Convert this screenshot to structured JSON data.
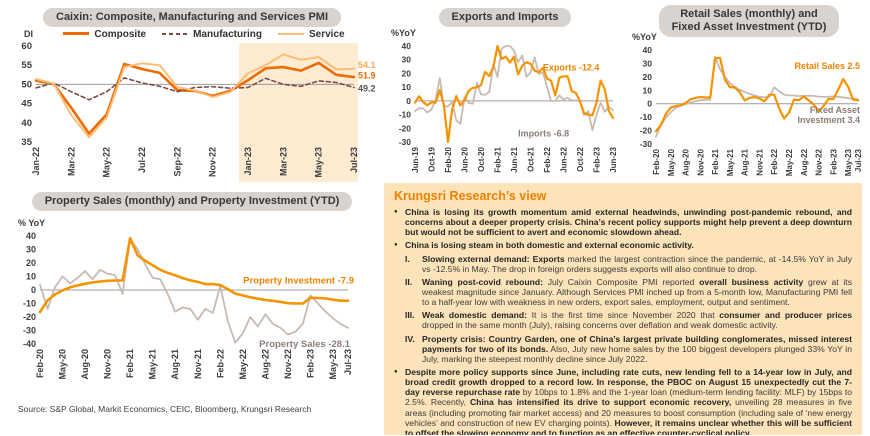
{
  "source_note": "Source: S&P Global, Markit Economics, CEIC, Bloomberg, Krungsri Research",
  "colors": {
    "orange": "#F59300",
    "composite_orange": "#EF6A00",
    "light_orange": "#FBBE77",
    "brown_dashed": "#7D4B45",
    "gray_line": "#C7BAB3",
    "gray_label": "#8A7D75",
    "orange_label": "#EF8200",
    "panel_bg": "#FCE3B9",
    "pill_bg": "#D9D3D0",
    "heading_orange": "#EF8200",
    "highlight": "#FDEBD2"
  },
  "chart_data": [
    {
      "id": "pmi",
      "type": "line",
      "title": "Caixin: Composite, Manufacturing and Services PMI",
      "unit": "DI",
      "categories": [
        "Jan-22",
        "Feb-22",
        "Mar-22",
        "Apr-22",
        "May-22",
        "Jun-22",
        "Jul-22",
        "Aug-22",
        "Sep-22",
        "Oct-22",
        "Nov-22",
        "Dec-22",
        "Jan-23",
        "Feb-23",
        "Mar-23",
        "Apr-23",
        "May-23",
        "Jun-23",
        "Jul-23"
      ],
      "xticks": [
        "Jan-22",
        "Mar-22",
        "May-22",
        "Jul-22",
        "Sep-22",
        "Nov-22",
        "Jan-23",
        "Mar-23",
        "May-23",
        "Jul-23"
      ],
      "ylim": [
        35,
        60
      ],
      "yticks": [
        60,
        55,
        50,
        45,
        40,
        35
      ],
      "ref_line": 50,
      "legend_position": "top",
      "highlight": {
        "from": "Jan-23",
        "to": "end",
        "color": "#FDEBD2"
      },
      "series": [
        {
          "name": "Composite",
          "color": "#EF6A00",
          "width": 2.6,
          "dash": null,
          "values": [
            51.0,
            50.1,
            43.9,
            37.2,
            42.2,
            55.3,
            54.0,
            53.0,
            48.5,
            48.3,
            47.0,
            48.3,
            51.1,
            54.2,
            54.5,
            53.6,
            55.6,
            52.5,
            51.9
          ]
        },
        {
          "name": "Manufacturing",
          "color": "#7D4B45",
          "width": 1.6,
          "dash": "4 3",
          "values": [
            49.1,
            50.4,
            48.1,
            46.0,
            48.1,
            51.7,
            50.4,
            49.5,
            48.1,
            49.2,
            49.4,
            49.0,
            49.2,
            51.6,
            50.0,
            49.5,
            50.9,
            50.5,
            49.2
          ]
        },
        {
          "name": "Service",
          "color": "#FBBE77",
          "width": 2.0,
          "dash": null,
          "values": [
            51.4,
            50.2,
            42.0,
            36.2,
            41.4,
            54.5,
            55.5,
            55.0,
            49.3,
            48.4,
            46.7,
            48.0,
            52.9,
            55.0,
            57.8,
            56.4,
            57.1,
            53.9,
            54.1
          ]
        }
      ],
      "annotations": [
        {
          "text": "54.1",
          "color": "#F6A94F",
          "xi": 18,
          "yv": 54.3,
          "dx": 4,
          "anchor": "start"
        },
        {
          "text": "51.9",
          "color": "#EF6A00",
          "xi": 18,
          "yv": 51.6,
          "dx": 4,
          "anchor": "start"
        },
        {
          "text": "49.2",
          "color": "#57504B",
          "xi": 18,
          "yv": 48.1,
          "dx": 4,
          "anchor": "start"
        }
      ]
    },
    {
      "id": "trade",
      "type": "line",
      "title": "Exports and Imports",
      "unit": "%YoY",
      "categories": [
        "Jun-19",
        "Jul-19",
        "Aug-19",
        "Sep-19",
        "Oct-19",
        "Nov-19",
        "Dec-19",
        "Jan-20",
        "Feb-20",
        "Mar-20",
        "Apr-20",
        "May-20",
        "Jun-20",
        "Jul-20",
        "Aug-20",
        "Sep-20",
        "Oct-20",
        "Nov-20",
        "Dec-20",
        "Jan-21",
        "Feb-21",
        "Mar-21",
        "Apr-21",
        "May-21",
        "Jun-21",
        "Jul-21",
        "Aug-21",
        "Sep-21",
        "Oct-21",
        "Nov-21",
        "Dec-21",
        "Jan-22",
        "Feb-22",
        "Mar-22",
        "Apr-22",
        "May-22",
        "Jun-22",
        "Jul-22",
        "Aug-22",
        "Sep-22",
        "Oct-22",
        "Nov-22",
        "Dec-22",
        "Jan-23",
        "Feb-23",
        "Mar-23",
        "Apr-23",
        "May-23",
        "Jun-23"
      ],
      "xticks": [
        "Jun-19",
        "Oct-19",
        "Feb-20",
        "Jun-20",
        "Oct-20",
        "Feb-21",
        "Jun-21",
        "Oct-21",
        "Feb-22",
        "Jun-22",
        "Oct-22",
        "Feb-23",
        "Jun-23"
      ],
      "ylim": [
        -30,
        40
      ],
      "yticks": [
        40,
        30,
        20,
        10,
        0,
        -10,
        -20,
        -30
      ],
      "ref_line": 0,
      "series": [
        {
          "name": "Imports",
          "color": "#C7BAB3",
          "width": 1.8,
          "dash": null,
          "values": [
            -7.4,
            -5.3,
            -5.6,
            -8.5,
            -6.2,
            0.8,
            16.5,
            -4.0,
            -4.0,
            -1.0,
            -14.2,
            -16.7,
            2.7,
            -1.4,
            -2.1,
            13.2,
            4.7,
            4.5,
            6.5,
            26.6,
            17.3,
            38.1,
            43.1,
            51.1,
            36.7,
            28.1,
            33.1,
            17.6,
            20.6,
            31.7,
            19.5,
            20.9,
            10.4,
            -0.1,
            0.0,
            4.1,
            1.0,
            2.3,
            0.3,
            0.3,
            -0.7,
            -10.6,
            -7.5,
            -21.4,
            -10.2,
            -1.4,
            -7.9,
            -4.5,
            -6.8
          ]
        },
        {
          "name": "Exports",
          "color": "#F59300",
          "width": 2.2,
          "dash": null,
          "values": [
            -1.3,
            3.3,
            -1.0,
            -3.2,
            -0.9,
            -1.3,
            7.9,
            -3.0,
            -32.0,
            -6.6,
            3.5,
            -3.3,
            0.5,
            7.2,
            9.5,
            9.9,
            11.4,
            21.1,
            18.1,
            24.8,
            60.0,
            30.6,
            32.3,
            27.9,
            32.2,
            19.3,
            25.6,
            28.1,
            27.1,
            22.0,
            20.9,
            24.1,
            16.3,
            14.7,
            3.9,
            16.9,
            17.9,
            18.0,
            7.1,
            5.7,
            -0.3,
            -9.0,
            -10.1,
            -10.5,
            -1.3,
            14.8,
            8.5,
            -7.5,
            -12.4
          ]
        }
      ],
      "annotations": [
        {
          "text": "Exports -12.4",
          "color": "#EF8200",
          "xi": 31,
          "yv": 22,
          "anchor": "start"
        },
        {
          "text": "Imports -6.8",
          "color": "#8A7D75",
          "xi": 25,
          "yv": -26,
          "anchor": "start"
        }
      ]
    },
    {
      "id": "retail",
      "type": "line",
      "title": "Retail Sales (monthly) and\nFixed Asset Investment (YTD)",
      "unit": "%YoY",
      "categories": [
        "Feb-20",
        "Mar-20",
        "Apr-20",
        "May-20",
        "Jun-20",
        "Jul-20",
        "Aug-20",
        "Sep-20",
        "Oct-20",
        "Nov-20",
        "Dec-20",
        "Jan-21",
        "Feb-21",
        "Mar-21",
        "Apr-21",
        "May-21",
        "Jun-21",
        "Jul-21",
        "Aug-21",
        "Sep-21",
        "Oct-21",
        "Nov-21",
        "Dec-21",
        "Jan-22",
        "Feb-22",
        "Mar-22",
        "Apr-22",
        "May-22",
        "Jun-22",
        "Jul-22",
        "Aug-22",
        "Sep-22",
        "Oct-22",
        "Nov-22",
        "Dec-22",
        "Jan-23",
        "Feb-23",
        "Mar-23",
        "Apr-23",
        "May-23",
        "Jun-23",
        "Jul-23"
      ],
      "xticks": [
        "Feb-20",
        "May-20",
        "Aug-20",
        "Nov-20",
        "Feb-21",
        "May-21",
        "Aug-21",
        "Nov-21",
        "Feb-22",
        "May-22",
        "Aug-22",
        "Nov-22",
        "Feb-23",
        "May-23",
        "Jul-23"
      ],
      "ylim": [
        -30,
        40
      ],
      "yticks": [
        40,
        30,
        20,
        10,
        0,
        -10,
        -20,
        -30
      ],
      "ref_line": 0,
      "series": [
        {
          "name": "Fixed Asset Investment",
          "color": "#C7BAB3",
          "width": 1.8,
          "dash": null,
          "values": [
            -24.5,
            -16.1,
            -10.3,
            -6.3,
            -3.1,
            -1.6,
            -0.3,
            0.8,
            1.8,
            2.6,
            2.9,
            2.9,
            35.0,
            25.6,
            19.9,
            15.4,
            12.6,
            10.3,
            8.9,
            7.3,
            6.1,
            5.2,
            4.9,
            4.9,
            12.2,
            9.3,
            6.8,
            6.2,
            6.1,
            5.7,
            5.8,
            5.9,
            5.8,
            5.3,
            5.1,
            5.1,
            5.5,
            5.1,
            4.7,
            4.0,
            3.8,
            3.4
          ]
        },
        {
          "name": "Retail Sales",
          "color": "#F59300",
          "width": 2.2,
          "dash": null,
          "values": [
            -20.5,
            -15.8,
            -7.5,
            -2.8,
            -1.8,
            -1.1,
            0.5,
            3.3,
            4.3,
            5.0,
            4.6,
            4.6,
            33.8,
            34.2,
            17.7,
            12.4,
            12.1,
            8.5,
            2.5,
            4.4,
            4.9,
            3.9,
            1.7,
            6.7,
            6.7,
            -3.5,
            -11.1,
            -6.7,
            3.1,
            2.7,
            5.4,
            2.5,
            -0.5,
            -5.9,
            -1.8,
            3.5,
            3.5,
            10.6,
            18.4,
            12.7,
            3.1,
            2.5
          ]
        }
      ],
      "annotations": [
        {
          "text": "Retail Sales 2.5",
          "color": "#EF8200",
          "xi": 41,
          "yv": 26,
          "dx": 2,
          "anchor": "end"
        },
        {
          "lines": [
            "Fixed Asset",
            "Investment 3.4"
          ],
          "color": "#8A7D75",
          "xi": 41,
          "yv": -7,
          "dx": 2,
          "anchor": "end"
        }
      ]
    },
    {
      "id": "property",
      "type": "line",
      "title": "Property Sales (monthly) and Property Investment (YTD)",
      "unit": "% YoY",
      "categories": [
        "Feb-20",
        "Mar-20",
        "Apr-20",
        "May-20",
        "Jun-20",
        "Jul-20",
        "Aug-20",
        "Sep-20",
        "Oct-20",
        "Nov-20",
        "Dec-20",
        "Jan-21",
        "Feb-21",
        "Mar-21",
        "Apr-21",
        "May-21",
        "Jun-21",
        "Jul-21",
        "Aug-21",
        "Sep-21",
        "Oct-21",
        "Nov-21",
        "Dec-21",
        "Jan-22",
        "Feb-22",
        "Mar-22",
        "Apr-22",
        "May-22",
        "Jun-22",
        "Jul-22",
        "Aug-22",
        "Sep-22",
        "Oct-22",
        "Nov-22",
        "Dec-22",
        "Jan-23",
        "Feb-23",
        "Mar-23",
        "Apr-23",
        "May-23",
        "Jun-23",
        "Jul-23"
      ],
      "xticks": [
        "Feb-20",
        "May-20",
        "Aug-20",
        "Nov-20",
        "Feb-21",
        "May-21",
        "Aug-21",
        "Nov-21",
        "Feb-22",
        "May-22",
        "Aug-22",
        "Nov-22",
        "Feb-23",
        "May-23",
        "Jul-23"
      ],
      "ylim": [
        -40,
        40
      ],
      "yticks": [
        40,
        30,
        20,
        10,
        0,
        -10,
        -20,
        -30,
        -40
      ],
      "ref_line": 0,
      "series": [
        {
          "name": "Property Sales",
          "color": "#C7BAB3",
          "width": 1.8,
          "dash": null,
          "values": [
            4,
            -14,
            2,
            10,
            5,
            9,
            14,
            8,
            15,
            12,
            11,
            -3,
            38,
            30,
            19,
            9,
            8,
            -3,
            -16,
            -13,
            -14,
            -22,
            -14,
            -17,
            3,
            -23,
            -39,
            -32,
            -20,
            -27,
            -18,
            -25,
            -28,
            -33,
            -31,
            -25,
            -4,
            -10,
            -16,
            -21,
            -25,
            -28.1
          ]
        },
        {
          "name": "Property Investment",
          "color": "#F59300",
          "width": 2.6,
          "dash": null,
          "values": [
            -16.3,
            -7.7,
            -3.3,
            -0.3,
            1.9,
            3.4,
            4.6,
            5.6,
            6.3,
            6.8,
            7.0,
            7.0,
            38.3,
            25.6,
            21.6,
            18.3,
            15.0,
            12.7,
            10.9,
            8.8,
            7.2,
            6.0,
            4.4,
            4.4,
            3.7,
            0.7,
            -2.7,
            -4.0,
            -5.4,
            -6.4,
            -7.4,
            -8.0,
            -8.8,
            -9.8,
            -10.0,
            -10.0,
            -5.7,
            -5.9,
            -6.2,
            -7.2,
            -7.9,
            -7.9
          ]
        }
      ],
      "annotations": [
        {
          "text": "Property Investment -7.9",
          "color": "#EF8200",
          "xi": 41,
          "yv": 5,
          "dx": 6,
          "anchor": "end"
        },
        {
          "text": "Property Sales -28.1",
          "color": "#8A7D75",
          "xi": 41,
          "yv": -40,
          "dx": 2,
          "dy": 3,
          "anchor": "end"
        }
      ]
    }
  ],
  "krungsri": {
    "heading": "Krungsri Research’s view",
    "items": [
      {
        "marker": "●",
        "style": "bullet",
        "segments": [
          {
            "b": true,
            "t": "China is losing its growth momentum amid external headwinds, unwinding post-pandemic rebound, and concerns about a deeper property crisis. China’s recent policy supports might help prevent a deep downturn but would not be sufficient to avert and economic slowdown ahead."
          }
        ]
      },
      {
        "marker": "●",
        "style": "bullet",
        "segments": [
          {
            "b": true,
            "t": "China is losing steam in both domestic and external economic activity."
          }
        ]
      },
      {
        "marker": "I.",
        "style": "roman",
        "segments": [
          {
            "b": true,
            "t": "Slowing external demand: Exports"
          },
          {
            "b": false,
            "t": " marked the largest contraction since the pandemic, at -14.5% YoY in July vs -12.5% in May. The drop in foreign orders suggests exports will also continue to drop."
          }
        ]
      },
      {
        "marker": "II.",
        "style": "roman",
        "segments": [
          {
            "b": true,
            "t": "Waning post-covid rebound:"
          },
          {
            "b": false,
            "t": " July Caixin Composite PMI reported "
          },
          {
            "b": true,
            "t": "overall business activity"
          },
          {
            "b": false,
            "t": " grew at its weakest magnitude since January. Although Services PMI inched up from a 5-month low, Manufacturing PMI fell to a half-year low with weakness in new orders, export sales, employment, output and sentiment."
          }
        ]
      },
      {
        "marker": "III.",
        "style": "roman",
        "segments": [
          {
            "b": true,
            "t": "Weak domestic demand:"
          },
          {
            "b": false,
            "t": " It is the first time since November 2020 that "
          },
          {
            "b": true,
            "t": "consumer and producer prices"
          },
          {
            "b": false,
            "t": " dropped in the same month (July), raising concerns over deflation and weak domestic activity."
          }
        ]
      },
      {
        "marker": "IV.",
        "style": "roman",
        "segments": [
          {
            "b": true,
            "t": "Property crisis: Country Garden, one of China’s largest private building conglomerates, missed interest payments for two of its bonds."
          },
          {
            "b": false,
            "t": " Also, July new home sales by the 100 biggest developers plunged 33% YoY in July, marking the steepest monthly decline since July 2022."
          }
        ]
      },
      {
        "marker": "●",
        "style": "bullet",
        "segments": [
          {
            "b": true,
            "t": "Despite more policy supports since June, including rate cuts, new lending fell to a 14-year low in July, and broad credit growth dropped to a record low. In response, the PBOC on August 15 unexpectedly cut the 7-day reverse repurchase rate"
          },
          {
            "b": false,
            "t": " by 10bps to 1.8% and the 1-year loan (medium-term lending facility: MLF) by 15bps to 2.5%. Recently, "
          },
          {
            "b": true,
            "t": "China has intensified its drive to support economic recovery,"
          },
          {
            "b": false,
            "t": " unveiling 28 measures in five areas (including promoting fair market access) and 20 measures to boost consumption (including sale of ‘new energy vehicles’ and construction of new EV charging points). "
          },
          {
            "b": true,
            "t": "However, it remains unclear whether this will be sufficient to offset the slowing economy and to function as an effective counter-cyclical policy."
          }
        ]
      }
    ]
  }
}
